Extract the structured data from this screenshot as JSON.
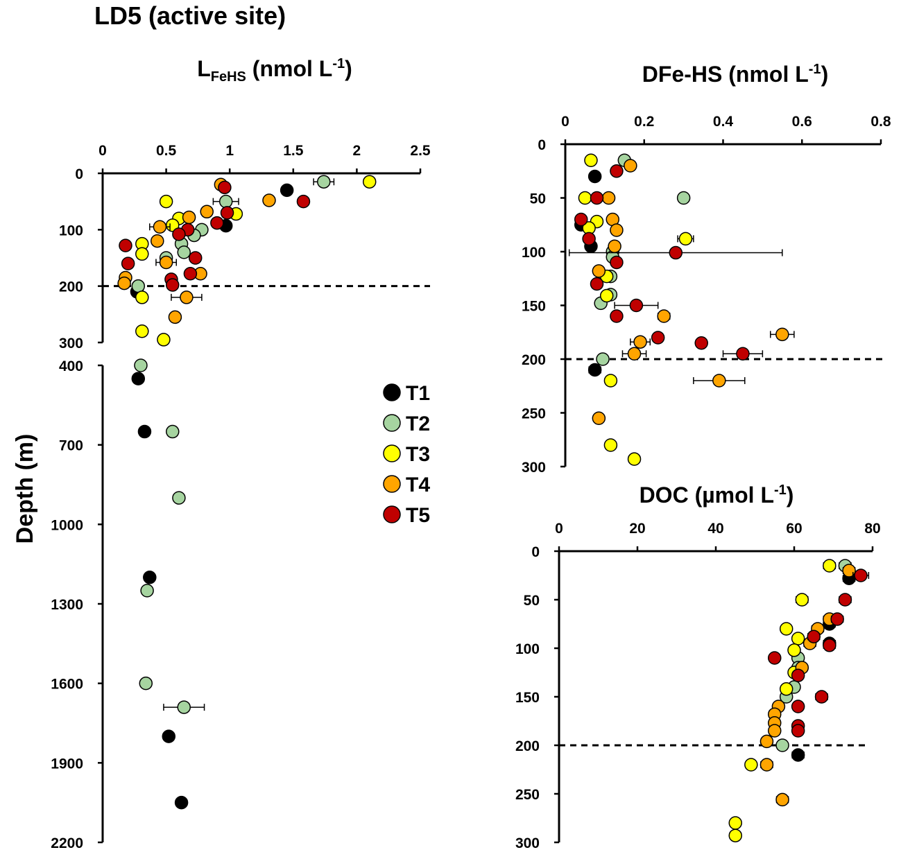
{
  "figure_title": "LD5 (active site)",
  "y_axis_label": "Depth (m)",
  "legend": [
    {
      "key": "T1",
      "label": "T1",
      "color": "#000000"
    },
    {
      "key": "T2",
      "label": "T2",
      "color": "#a6d4a0"
    },
    {
      "key": "T3",
      "label": "T3",
      "color": "#ffff00"
    },
    {
      "key": "T4",
      "label": "T4",
      "color": "#ffa500"
    },
    {
      "key": "T5",
      "label": "T5",
      "color": "#c00000"
    }
  ],
  "chart_data": [
    {
      "id": "lfehs",
      "type": "scatter",
      "title_main": "L",
      "title_sub": "FeHS",
      "title_rest": " (nmol L",
      "title_sup": "-1",
      "title_end": ")",
      "xlim": [
        0,
        2.5
      ],
      "xticks": [
        0,
        0.5,
        1,
        1.5,
        2,
        2.5
      ],
      "xtick_labels": [
        "0",
        "0.5",
        "1",
        "1.5",
        "2",
        "2.5"
      ],
      "upper_ylim": [
        0,
        300
      ],
      "upper_yticks": [
        0,
        100,
        200,
        300
      ],
      "upper_ytick_labels": [
        "0",
        "100",
        "200",
        "300"
      ],
      "lower_ylim": [
        400,
        2200
      ],
      "lower_yticks": [
        400,
        700,
        1000,
        1300,
        1600,
        1900,
        2200
      ],
      "lower_ytick_labels": [
        "400",
        "700",
        "1000",
        "1300",
        "1600",
        "1900",
        "2200"
      ],
      "reference_depth": 200,
      "series": [
        {
          "name": "T1",
          "points": [
            {
              "x": 1.45,
              "y": 30
            },
            {
              "x": 0.97,
              "y": 93
            },
            {
              "x": 0.27,
              "y": 210
            },
            {
              "x": 0.28,
              "y": 450
            },
            {
              "x": 0.33,
              "y": 650
            },
            {
              "x": 0.37,
              "y": 1200
            },
            {
              "x": 0.52,
              "y": 1800
            },
            {
              "x": 0.62,
              "y": 2050
            }
          ]
        },
        {
          "name": "T2",
          "points": [
            {
              "x": 1.74,
              "y": 15,
              "xerr": 0.08
            },
            {
              "x": 0.97,
              "y": 50,
              "xerr": 0.1
            },
            {
              "x": 0.78,
              "y": 100
            },
            {
              "x": 0.72,
              "y": 110
            },
            {
              "x": 0.62,
              "y": 125
            },
            {
              "x": 0.64,
              "y": 140
            },
            {
              "x": 0.5,
              "y": 150
            },
            {
              "x": 0.28,
              "y": 200
            },
            {
              "x": 0.3,
              "y": 400
            },
            {
              "x": 0.55,
              "y": 650
            },
            {
              "x": 0.6,
              "y": 900
            },
            {
              "x": 0.35,
              "y": 1250
            },
            {
              "x": 0.34,
              "y": 1600
            },
            {
              "x": 0.64,
              "y": 1690,
              "xerr": 0.16
            }
          ]
        },
        {
          "name": "T3",
          "points": [
            {
              "x": 2.1,
              "y": 15
            },
            {
              "x": 1.05,
              "y": 72
            },
            {
              "x": 0.5,
              "y": 50
            },
            {
              "x": 0.6,
              "y": 80
            },
            {
              "x": 0.55,
              "y": 92
            },
            {
              "x": 0.31,
              "y": 125
            },
            {
              "x": 0.31,
              "y": 143
            },
            {
              "x": 0.31,
              "y": 220
            },
            {
              "x": 0.31,
              "y": 280
            },
            {
              "x": 0.48,
              "y": 295
            }
          ]
        },
        {
          "name": "T4",
          "points": [
            {
              "x": 0.93,
              "y": 20
            },
            {
              "x": 1.31,
              "y": 48
            },
            {
              "x": 0.82,
              "y": 68
            },
            {
              "x": 0.68,
              "y": 78
            },
            {
              "x": 0.45,
              "y": 95,
              "xerr": 0.08
            },
            {
              "x": 0.43,
              "y": 120
            },
            {
              "x": 0.5,
              "y": 158,
              "xerr": 0.08
            },
            {
              "x": 0.77,
              "y": 178
            },
            {
              "x": 0.18,
              "y": 185
            },
            {
              "x": 0.17,
              "y": 195
            },
            {
              "x": 0.66,
              "y": 220,
              "xerr": 0.12
            },
            {
              "x": 0.57,
              "y": 255
            }
          ]
        },
        {
          "name": "T5",
          "points": [
            {
              "x": 0.96,
              "y": 25
            },
            {
              "x": 1.58,
              "y": 50
            },
            {
              "x": 0.98,
              "y": 70
            },
            {
              "x": 0.9,
              "y": 88
            },
            {
              "x": 0.67,
              "y": 100
            },
            {
              "x": 0.6,
              "y": 108
            },
            {
              "x": 0.18,
              "y": 128
            },
            {
              "x": 0.73,
              "y": 150
            },
            {
              "x": 0.2,
              "y": 160
            },
            {
              "x": 0.69,
              "y": 178
            },
            {
              "x": 0.54,
              "y": 188
            },
            {
              "x": 0.55,
              "y": 198
            }
          ]
        }
      ]
    },
    {
      "id": "dfehs",
      "type": "scatter",
      "title_main": "DFe-HS (nmol L",
      "title_sup": "-1",
      "title_end": ")",
      "xlim": [
        0,
        0.8
      ],
      "xticks": [
        0,
        0.2,
        0.4,
        0.6,
        0.8
      ],
      "xtick_labels": [
        "0",
        "0.2",
        "0.4",
        "0.6",
        "0.8"
      ],
      "ylim": [
        0,
        300
      ],
      "yticks": [
        0,
        50,
        100,
        150,
        200,
        250,
        300
      ],
      "ytick_labels": [
        "0",
        "50",
        "100",
        "150",
        "200",
        "250",
        "300"
      ],
      "reference_depth": 200,
      "series": [
        {
          "name": "T1",
          "points": [
            {
              "x": 0.075,
              "y": 30,
              "xerr": 0.012
            },
            {
              "x": 0.04,
              "y": 75,
              "xerr": 0.012
            },
            {
              "x": 0.065,
              "y": 95
            },
            {
              "x": 0.075,
              "y": 210,
              "xerr": 0.015
            }
          ]
        },
        {
          "name": "T2",
          "points": [
            {
              "x": 0.15,
              "y": 15
            },
            {
              "x": 0.3,
              "y": 50
            },
            {
              "x": 0.12,
              "y": 100
            },
            {
              "x": 0.12,
              "y": 105
            },
            {
              "x": 0.115,
              "y": 123
            },
            {
              "x": 0.115,
              "y": 140
            },
            {
              "x": 0.09,
              "y": 148
            },
            {
              "x": 0.095,
              "y": 200
            }
          ]
        },
        {
          "name": "T3",
          "points": [
            {
              "x": 0.065,
              "y": 15
            },
            {
              "x": 0.05,
              "y": 50
            },
            {
              "x": 0.08,
              "y": 72
            },
            {
              "x": 0.06,
              "y": 78
            },
            {
              "x": 0.305,
              "y": 88,
              "xerr": 0.02
            },
            {
              "x": 0.105,
              "y": 123
            },
            {
              "x": 0.105,
              "y": 141
            },
            {
              "x": 0.115,
              "y": 220
            },
            {
              "x": 0.115,
              "y": 280
            },
            {
              "x": 0.175,
              "y": 293
            }
          ]
        },
        {
          "name": "T4",
          "points": [
            {
              "x": 0.165,
              "y": 20
            },
            {
              "x": 0.11,
              "y": 50
            },
            {
              "x": 0.12,
              "y": 70
            },
            {
              "x": 0.13,
              "y": 80
            },
            {
              "x": 0.125,
              "y": 95
            },
            {
              "x": 0.085,
              "y": 118
            },
            {
              "x": 0.25,
              "y": 160,
              "xerr": 0.015
            },
            {
              "x": 0.55,
              "y": 177,
              "xerr": 0.03
            },
            {
              "x": 0.19,
              "y": 184,
              "xerr": 0.025
            },
            {
              "x": 0.175,
              "y": 195,
              "xerr": 0.03
            },
            {
              "x": 0.39,
              "y": 220,
              "xerr": 0.065
            },
            {
              "x": 0.085,
              "y": 255
            }
          ]
        },
        {
          "name": "T5",
          "points": [
            {
              "x": 0.13,
              "y": 25
            },
            {
              "x": 0.08,
              "y": 50
            },
            {
              "x": 0.04,
              "y": 70
            },
            {
              "x": 0.06,
              "y": 88
            },
            {
              "x": 0.28,
              "y": 101,
              "xerr": 0.27
            },
            {
              "x": 0.13,
              "y": 110
            },
            {
              "x": 0.08,
              "y": 130
            },
            {
              "x": 0.18,
              "y": 150,
              "xerr": 0.055
            },
            {
              "x": 0.13,
              "y": 160
            },
            {
              "x": 0.235,
              "y": 180
            },
            {
              "x": 0.345,
              "y": 185
            },
            {
              "x": 0.45,
              "y": 195,
              "xerr": 0.05
            }
          ]
        }
      ]
    },
    {
      "id": "doc",
      "type": "scatter",
      "title_main": "DOC (µmol L",
      "title_sup": "-1",
      "title_end": ")",
      "xlim": [
        0,
        80
      ],
      "xticks": [
        0,
        20,
        40,
        60,
        80
      ],
      "xtick_labels": [
        "0",
        "20",
        "40",
        "60",
        "80"
      ],
      "ylim": [
        0,
        300
      ],
      "yticks": [
        0,
        50,
        100,
        150,
        200,
        250,
        300
      ],
      "ytick_labels": [
        "0",
        "50",
        "100",
        "150",
        "200",
        "250",
        "300"
      ],
      "reference_depth": 200,
      "series": [
        {
          "name": "T1",
          "points": [
            {
              "x": 74,
              "y": 28,
              "xerr": 1.5
            },
            {
              "x": 69,
              "y": 75,
              "xerr": 1.5
            },
            {
              "x": 69,
              "y": 95,
              "xerr": 1.5
            },
            {
              "x": 61,
              "y": 210,
              "xerr": 1.5
            }
          ]
        },
        {
          "name": "T2",
          "points": [
            {
              "x": 73,
              "y": 15,
              "xerr": 1.5
            },
            {
              "x": 61,
              "y": 110
            },
            {
              "x": 61,
              "y": 120
            },
            {
              "x": 60,
              "y": 140
            },
            {
              "x": 58,
              "y": 150
            },
            {
              "x": 57,
              "y": 200
            }
          ]
        },
        {
          "name": "T3",
          "points": [
            {
              "x": 69,
              "y": 15,
              "xerr": 1.5
            },
            {
              "x": 62,
              "y": 50,
              "xerr": 1.5
            },
            {
              "x": 58,
              "y": 80
            },
            {
              "x": 61,
              "y": 90
            },
            {
              "x": 60,
              "y": 102
            },
            {
              "x": 60,
              "y": 125
            },
            {
              "x": 58,
              "y": 142
            },
            {
              "x": 49,
              "y": 220
            },
            {
              "x": 45,
              "y": 280
            },
            {
              "x": 45,
              "y": 293
            }
          ]
        },
        {
          "name": "T4",
          "points": [
            {
              "x": 74,
              "y": 20,
              "xerr": 1.5
            },
            {
              "x": 69,
              "y": 70,
              "xerr": 1.5
            },
            {
              "x": 66,
              "y": 80,
              "xerr": 1.5
            },
            {
              "x": 64,
              "y": 95,
              "xerr": 1.5
            },
            {
              "x": 62,
              "y": 120
            },
            {
              "x": 56,
              "y": 160
            },
            {
              "x": 55,
              "y": 168
            },
            {
              "x": 55,
              "y": 177
            },
            {
              "x": 55,
              "y": 185
            },
            {
              "x": 53,
              "y": 196
            },
            {
              "x": 53,
              "y": 220,
              "xerr": 1.5
            },
            {
              "x": 57,
              "y": 256,
              "xerr": 1.5
            }
          ]
        },
        {
          "name": "T5",
          "points": [
            {
              "x": 77,
              "y": 25,
              "xerr": 2
            },
            {
              "x": 73,
              "y": 50,
              "xerr": 1.5
            },
            {
              "x": 71,
              "y": 70,
              "xerr": 1.5
            },
            {
              "x": 65,
              "y": 88,
              "xerr": 1.5
            },
            {
              "x": 69,
              "y": 97,
              "xerr": 1.5
            },
            {
              "x": 55,
              "y": 110
            },
            {
              "x": 61,
              "y": 128
            },
            {
              "x": 67,
              "y": 150,
              "xerr": 1.5
            },
            {
              "x": 61,
              "y": 160
            },
            {
              "x": 61,
              "y": 180
            },
            {
              "x": 61,
              "y": 185
            }
          ]
        }
      ]
    }
  ]
}
